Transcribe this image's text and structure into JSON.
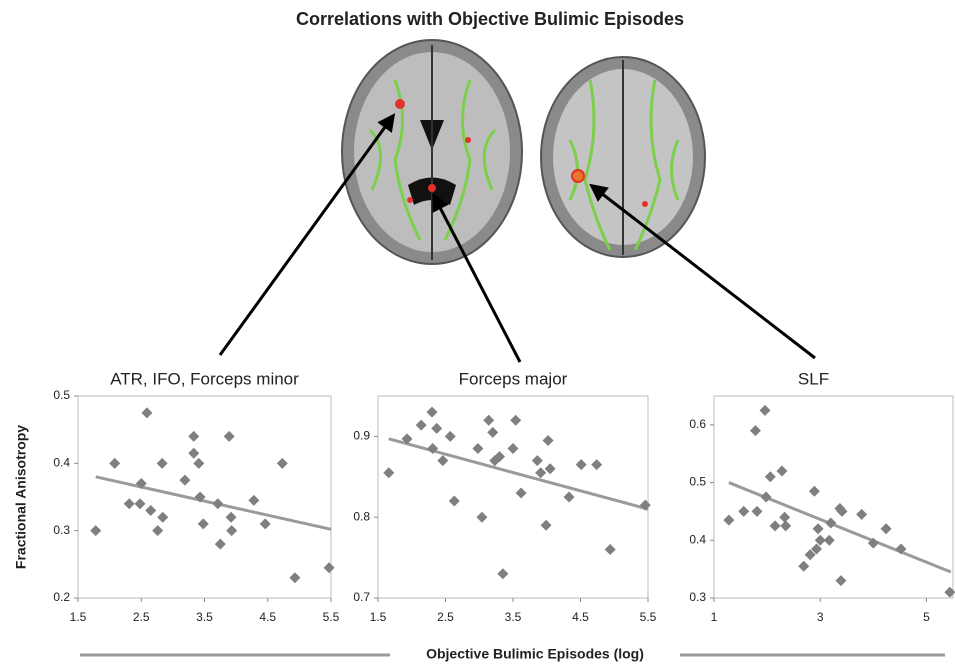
{
  "title": "Correlations with Objective Bulimic Episodes",
  "y_label": "Fractional Anisotropy",
  "x_label": "Objective Bulimic Episodes (log)",
  "chart_data": [
    {
      "type": "scatter",
      "title": "ATR, IFO, Forceps minor",
      "x": [
        1.78,
        2.08,
        2.31,
        2.48,
        2.5,
        2.59,
        2.65,
        2.76,
        2.83,
        2.84,
        3.19,
        3.33,
        3.33,
        3.41,
        3.43,
        3.48,
        3.71,
        3.75,
        3.89,
        3.92,
        3.93,
        4.28,
        4.46,
        4.73,
        4.93,
        5.47
      ],
      "y": [
        0.3,
        0.4,
        0.34,
        0.34,
        0.37,
        0.475,
        0.33,
        0.3,
        0.4,
        0.32,
        0.375,
        0.44,
        0.415,
        0.4,
        0.35,
        0.31,
        0.34,
        0.28,
        0.44,
        0.32,
        0.3,
        0.345,
        0.31,
        0.4,
        0.23,
        0.245
      ],
      "trend": {
        "x": [
          1.78,
          5.5
        ],
        "y": [
          0.38,
          0.302
        ]
      },
      "color": "#7f7f7f",
      "trend_color": "#9a9a9a",
      "xlim": [
        1.5,
        5.5
      ],
      "xticks": [
        1.5,
        2.5,
        3.5,
        4.5,
        5.5
      ],
      "ylim": [
        0.2,
        0.5
      ],
      "yticks": [
        0.2,
        0.3,
        0.4,
        0.5
      ]
    },
    {
      "type": "scatter",
      "title": "Forceps major",
      "x": [
        1.66,
        1.93,
        2.14,
        2.3,
        2.31,
        2.37,
        2.46,
        2.57,
        2.63,
        2.98,
        3.04,
        3.14,
        3.2,
        3.23,
        3.3,
        3.35,
        3.5,
        3.54,
        3.62,
        3.86,
        3.91,
        4.02,
        3.99,
        4.05,
        4.33,
        4.51,
        4.74,
        4.94,
        5.46
      ],
      "y": [
        0.855,
        0.897,
        0.914,
        0.93,
        0.885,
        0.91,
        0.87,
        0.9,
        0.82,
        0.885,
        0.8,
        0.92,
        0.905,
        0.87,
        0.875,
        0.73,
        0.885,
        0.92,
        0.83,
        0.87,
        0.855,
        0.895,
        0.79,
        0.86,
        0.825,
        0.865,
        0.865,
        0.76,
        0.815
      ],
      "trend": {
        "x": [
          1.66,
          5.5
        ],
        "y": [
          0.897,
          0.81
        ]
      },
      "color": "#7f7f7f",
      "trend_color": "#9a9a9a",
      "xlim": [
        1.5,
        5.5
      ],
      "xticks": [
        1.5,
        2.5,
        3.5,
        4.5,
        5.5
      ],
      "ylim": [
        0.7,
        0.95
      ],
      "yticks": [
        0.7,
        0.8,
        0.9
      ]
    },
    {
      "type": "scatter",
      "title": "SLF",
      "x": [
        1.28,
        1.56,
        1.78,
        1.81,
        1.96,
        1.98,
        2.06,
        2.15,
        2.28,
        2.33,
        2.35,
        2.69,
        2.81,
        2.89,
        2.93,
        2.96,
        3.0,
        3.17,
        3.2,
        3.37,
        3.39,
        3.41,
        3.78,
        4.0,
        4.24,
        4.52,
        5.44
      ],
      "y": [
        0.435,
        0.45,
        0.59,
        0.45,
        0.625,
        0.475,
        0.51,
        0.425,
        0.52,
        0.44,
        0.425,
        0.355,
        0.375,
        0.485,
        0.385,
        0.42,
        0.4,
        0.4,
        0.43,
        0.455,
        0.33,
        0.45,
        0.445,
        0.395,
        0.42,
        0.385,
        0.31
      ],
      "trend": {
        "x": [
          1.28,
          5.46
        ],
        "y": [
          0.5,
          0.345
        ]
      },
      "color": "#7f7f7f",
      "trend_color": "#9a9a9a",
      "xlim": [
        1,
        5.5
      ],
      "xticks": [
        1,
        3,
        5
      ],
      "ylim": [
        0.3,
        0.65
      ],
      "yticks": [
        0.3,
        0.4,
        0.5,
        0.6
      ]
    }
  ]
}
